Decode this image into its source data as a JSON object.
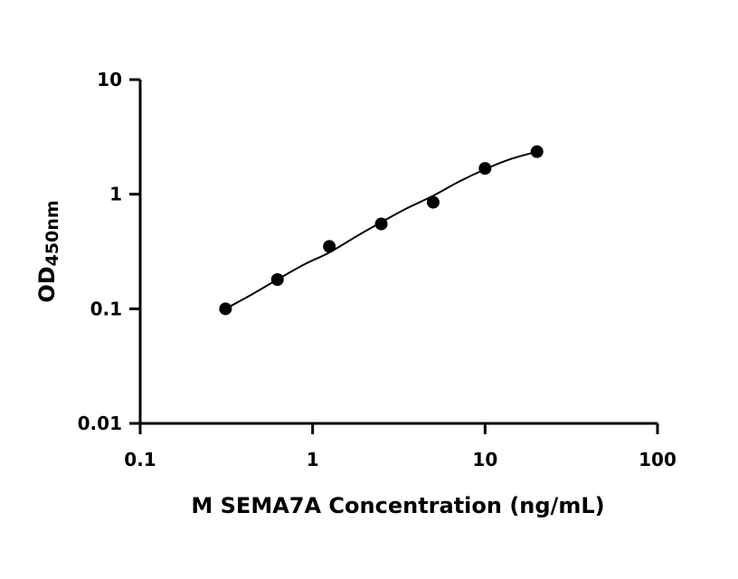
{
  "chart_data": {
    "type": "scatter",
    "x_scale": "log",
    "y_scale": "log",
    "xlim": [
      0.1,
      100
    ],
    "ylim": [
      0.01,
      10
    ],
    "x_ticks": [
      0.1,
      1,
      10,
      100
    ],
    "x_tick_labels": [
      "0.1",
      "1",
      "10",
      "100"
    ],
    "y_ticks": [
      0.01,
      0.1,
      1,
      10
    ],
    "y_tick_labels": [
      "0.01",
      "0.1",
      "1",
      "10"
    ],
    "xlabel": "M SEMA7A Concentration (ng/mL)",
    "ylabel_main": "OD",
    "ylabel_sub": "450nm",
    "grid": false,
    "legend": "none",
    "series": [
      {
        "x": [
          0.3125,
          0.625,
          1.25,
          2.5,
          5,
          10,
          20
        ],
        "y": [
          0.1,
          0.18,
          0.35,
          0.55,
          0.85,
          1.68,
          2.35
        ]
      }
    ],
    "fit_curve": {
      "type": "sigmoid-fit",
      "x": [
        0.3125,
        0.45,
        0.625,
        0.9,
        1.25,
        1.8,
        2.5,
        3.5,
        5,
        7,
        10,
        14,
        20
      ],
      "y": [
        0.1,
        0.135,
        0.18,
        0.245,
        0.31,
        0.43,
        0.57,
        0.75,
        0.97,
        1.28,
        1.65,
        2.02,
        2.35
      ]
    }
  }
}
